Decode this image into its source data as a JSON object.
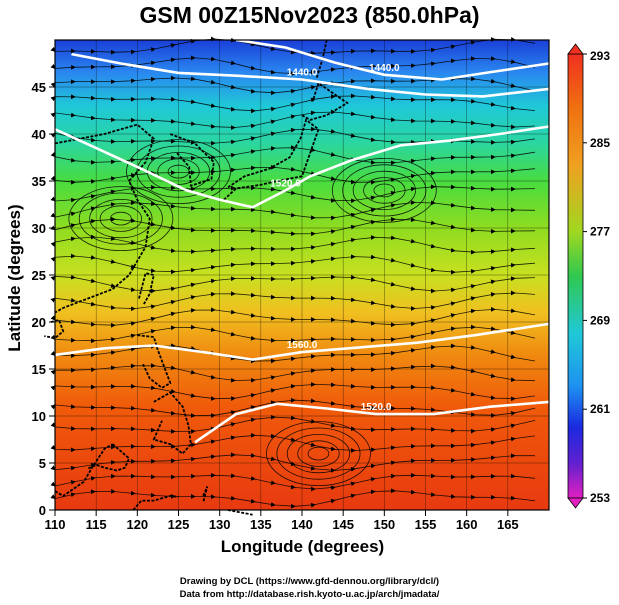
{
  "title": "GSM 00Z15Nov2023 (850.0hPa)",
  "axes": {
    "xlabel": "Longitude (degrees)",
    "ylabel": "Latitude  (degrees)",
    "x_ticks": [
      110,
      115,
      120,
      125,
      130,
      135,
      140,
      145,
      150,
      155,
      160,
      165
    ],
    "y_ticks": [
      0,
      5,
      10,
      15,
      20,
      25,
      30,
      35,
      40,
      45
    ],
    "x_range": [
      110,
      170
    ],
    "y_range": [
      0,
      50
    ]
  },
  "colorbar": {
    "ticks": [
      293,
      285,
      277,
      269,
      261,
      253
    ],
    "range": [
      253,
      293
    ],
    "unit": ""
  },
  "contours": [
    {
      "label": "1440.0",
      "points": [
        [
          112,
          48.5
        ],
        [
          118,
          47.5
        ],
        [
          125,
          46.5
        ],
        [
          132,
          46.2
        ],
        [
          140,
          45.8
        ],
        [
          148,
          44.8
        ],
        [
          155,
          44.2
        ],
        [
          162,
          44
        ],
        [
          170,
          44.8
        ]
      ]
    },
    {
      "label": "1440.0",
      "points": [
        [
          132,
          50
        ],
        [
          138,
          49.2
        ],
        [
          144,
          47.6
        ],
        [
          150,
          46.3
        ],
        [
          157,
          45.8
        ],
        [
          163,
          46.6
        ],
        [
          170,
          47.5
        ]
      ]
    },
    {
      "label": "1520.0",
      "points": [
        [
          110,
          40.5
        ],
        [
          115,
          38.5
        ],
        [
          120,
          36.5
        ],
        [
          126,
          34
        ],
        [
          130,
          33
        ],
        [
          134,
          32.2
        ],
        [
          138,
          34
        ],
        [
          141,
          35.5
        ],
        [
          146,
          37.2
        ],
        [
          152,
          38.8
        ],
        [
          158,
          39.3
        ],
        [
          164,
          40
        ],
        [
          170,
          40.8
        ]
      ]
    },
    {
      "label": "1560.0",
      "points": [
        [
          110,
          16.5
        ],
        [
          116,
          17.2
        ],
        [
          122,
          17.5
        ],
        [
          128,
          16.8
        ],
        [
          134,
          16
        ],
        [
          140,
          16.8
        ],
        [
          147,
          17.3
        ],
        [
          154,
          17.8
        ],
        [
          161,
          18.6
        ],
        [
          170,
          19.8
        ]
      ]
    },
    {
      "label": "1520.0",
      "points": [
        [
          127,
          7.2
        ],
        [
          132,
          10.2
        ],
        [
          137,
          11.3
        ],
        [
          143,
          10.8
        ],
        [
          149,
          10.2
        ],
        [
          156,
          10.2
        ],
        [
          163,
          11
        ],
        [
          170,
          11.5
        ]
      ]
    }
  ],
  "credits": {
    "line1": "Drawing by DCL (https://www.gfd-dennou.org/library/dcl/)",
    "line2": "Data from http://database.rish.kyoto-u.ac.jp/arch/jmadata/"
  }
}
